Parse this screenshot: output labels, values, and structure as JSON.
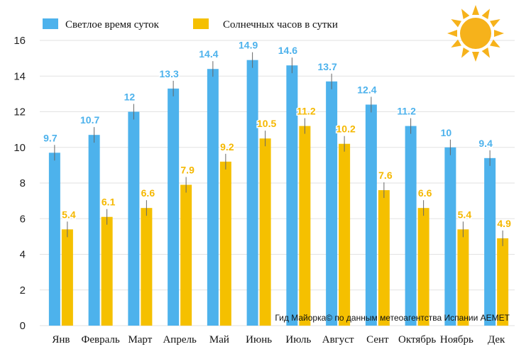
{
  "chart_data": {
    "type": "bar",
    "title": "",
    "xlabel": "",
    "ylabel": "",
    "ylim": [
      0,
      16
    ],
    "yticks": [
      0,
      2,
      4,
      6,
      8,
      10,
      12,
      14,
      16
    ],
    "grid": true,
    "legend_position": "top-left",
    "categories": [
      "Янв",
      "Февраль",
      "Март",
      "Апрель",
      "Май",
      "Июнь",
      "Июль",
      "Август",
      "Сент",
      "Октябрь",
      "Ноябрь",
      "Дек"
    ],
    "series": [
      {
        "name": "Светлое время суток",
        "color": "#4db2ec",
        "label_color": "#4db2ec",
        "values": [
          9.7,
          10.7,
          12,
          13.3,
          14.4,
          14.9,
          14.6,
          13.7,
          12.4,
          11.2,
          10,
          9.4
        ],
        "labels": [
          "9.7",
          "10.7",
          "12",
          "13.3",
          "14.4",
          "14.9",
          "14.6",
          "13.7",
          "12.4",
          "11.2",
          "10",
          "9.4"
        ]
      },
      {
        "name": "Солнечных часов в сутки",
        "color": "#f5c000",
        "label_color": "#f5b800",
        "values": [
          5.4,
          6.1,
          6.6,
          7.9,
          9.2,
          10.5,
          11.2,
          10.2,
          7.6,
          6.6,
          5.4,
          4.9
        ],
        "labels": [
          "5.4",
          "6.1",
          "6.6",
          "7.9",
          "9.2",
          "10.5",
          "11.2",
          "10.2",
          "7.6",
          "6.6",
          "5.4",
          "4.9"
        ]
      }
    ],
    "annotation": "Гид Майорка© по данным метеоагентства Испании AEMET",
    "icon": "sun-icon",
    "grid_color": "#e2e2e2",
    "errorbar_color": "#666666"
  }
}
